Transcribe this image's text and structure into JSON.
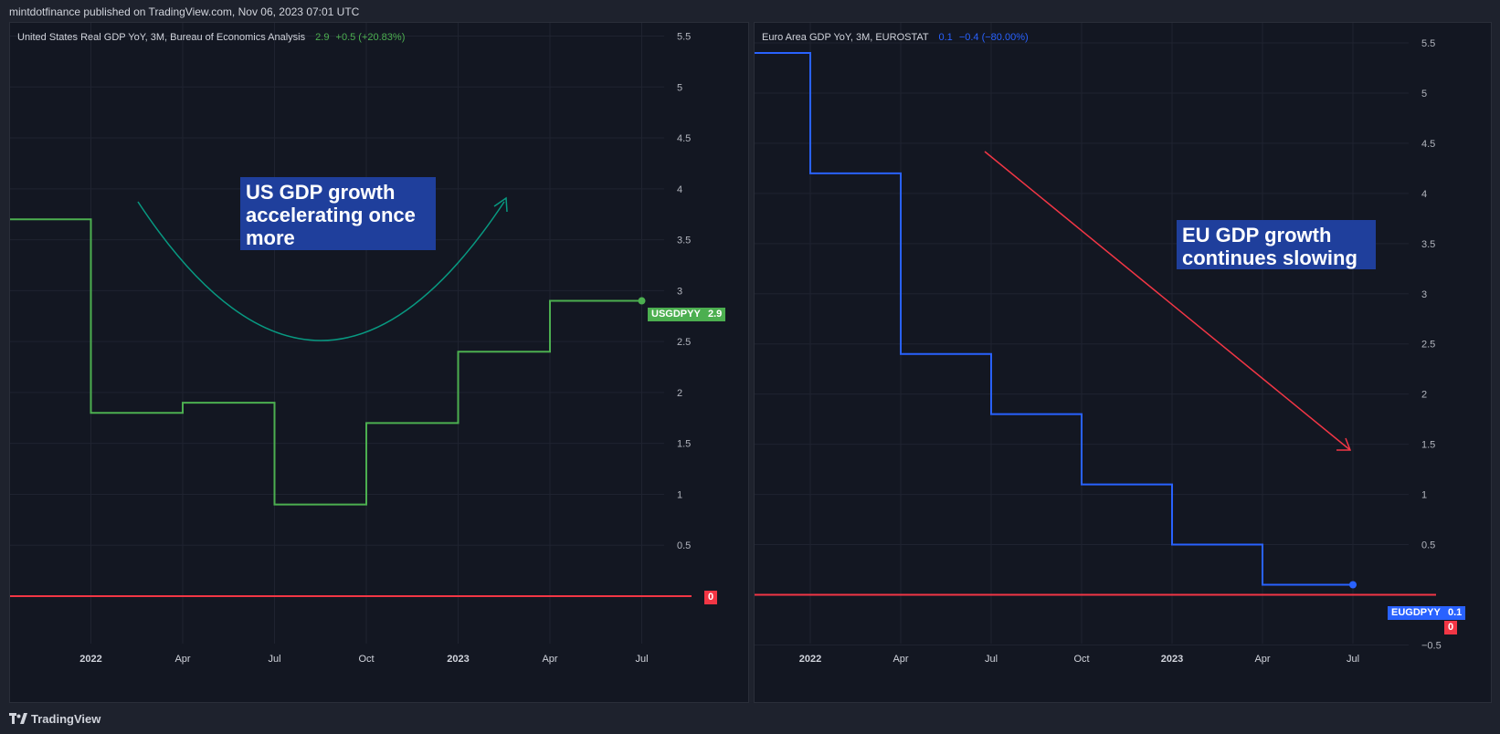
{
  "header": {
    "text": "mintdotfinance published on TradingView.com, Nov 06, 2023 07:01 UTC"
  },
  "footer": {
    "brand": "TradingView",
    "logo_icon": "tradingview-logo-icon"
  },
  "colors": {
    "us_line": "#4caf50",
    "eu_line": "#2962ff",
    "zero_line": "#f23645",
    "us_arrow": "#089981",
    "eu_arrow": "#f23645"
  },
  "chart_data": [
    {
      "type": "line",
      "title": "United States Real GDP YoY, 3M, Bureau of Economics Analysis",
      "legend_value": "2.9",
      "legend_change": "+0.5 (+20.83%)",
      "symbol": "USGDPYY",
      "last_value_label": "2.9",
      "zero_label": "0",
      "annotation": "US GDP growth accelerating once more",
      "x_tick_labels": [
        "2022",
        "Apr",
        "Jul",
        "Oct",
        "2023",
        "Apr",
        "Jul"
      ],
      "y_tick_labels": [
        "0.5",
        "1",
        "1.5",
        "2",
        "2.5",
        "3",
        "3.5",
        "4",
        "4.5",
        "5",
        "5.5"
      ],
      "ylim": [
        -0.6,
        5.8
      ],
      "x": [
        "2021-10",
        "2022-01",
        "2022-04",
        "2022-07",
        "2022-10",
        "2023-01",
        "2023-04",
        "2023-07"
      ],
      "values": [
        3.7,
        1.8,
        1.9,
        0.9,
        1.7,
        2.4,
        2.9,
        2.9
      ],
      "reference_line": 0
    },
    {
      "type": "line",
      "title": "Euro Area GDP YoY, 3M, EUROSTAT",
      "legend_value": "0.1",
      "legend_change": "−0.4 (−80.00%)",
      "symbol": "EUGDPYY",
      "last_value_label": "0.1",
      "zero_label": "0",
      "annotation": "EU GDP growth continues slowing",
      "x_tick_labels": [
        "2022",
        "Apr",
        "Jul",
        "Oct",
        "2023",
        "Apr",
        "Jul"
      ],
      "y_tick_labels": [
        "−0.5",
        "0.5",
        "1",
        "1.5",
        "2",
        "2.5",
        "3",
        "3.5",
        "4",
        "4.5",
        "5",
        "5.5"
      ],
      "ylim": [
        -0.6,
        5.8
      ],
      "x": [
        "2021-10",
        "2022-01",
        "2022-04",
        "2022-07",
        "2022-10",
        "2023-01",
        "2023-04",
        "2023-07"
      ],
      "values": [
        5.4,
        4.2,
        2.4,
        1.8,
        1.1,
        0.5,
        0.1,
        0.1
      ],
      "reference_line": 0
    }
  ]
}
